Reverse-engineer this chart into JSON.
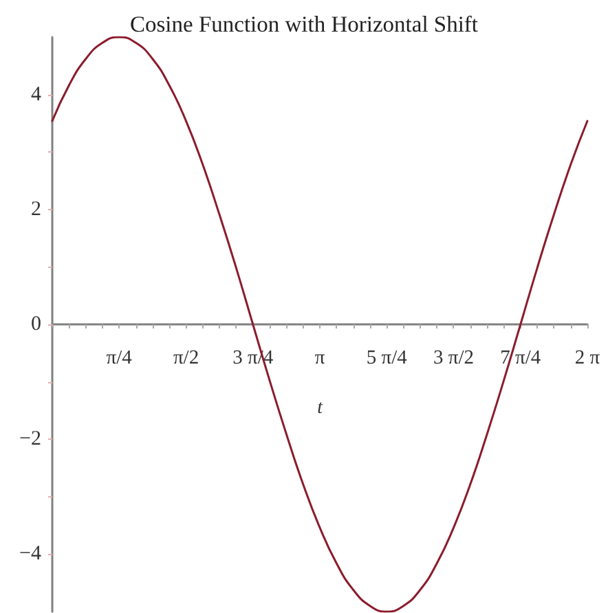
{
  "chart_data": {
    "type": "line",
    "title": "Cosine Function with Horizontal Shift",
    "xlabel": "t",
    "x": [
      0,
      0.196,
      0.393,
      0.589,
      0.785,
      0.982,
      1.178,
      1.374,
      1.571,
      1.767,
      1.963,
      2.16,
      2.356,
      2.553,
      2.749,
      2.945,
      3.142,
      3.338,
      3.534,
      3.731,
      3.927,
      4.123,
      4.32,
      4.516,
      4.712,
      4.909,
      5.105,
      5.301,
      5.498,
      5.694,
      5.89,
      6.087,
      6.283
    ],
    "values": [
      3.54,
      4.16,
      4.62,
      4.9,
      5,
      4.9,
      4.62,
      4.16,
      3.54,
      2.78,
      1.91,
      0.98,
      0,
      -0.98,
      -1.91,
      -2.78,
      -3.54,
      -4.16,
      -4.62,
      -4.9,
      -5,
      -4.9,
      -4.62,
      -4.16,
      -3.54,
      -2.78,
      -1.91,
      -0.98,
      0,
      0.98,
      1.91,
      2.78,
      3.54
    ],
    "color": "#8b1c2c",
    "xlim": [
      0,
      6.283
    ],
    "xticks": [
      {
        "value": 0.785,
        "label": "π/4"
      },
      {
        "value": 1.571,
        "label": "π/2"
      },
      {
        "value": 2.356,
        "label": "3 π/4"
      },
      {
        "value": 3.142,
        "label": "π"
      },
      {
        "value": 3.927,
        "label": "5 π/4"
      },
      {
        "value": 4.712,
        "label": "3 π/2"
      },
      {
        "value": 5.498,
        "label": "7 π/4"
      },
      {
        "value": 6.283,
        "label": "2 π"
      }
    ],
    "ylim": [
      -5,
      5
    ],
    "yticks": [
      -4,
      -2,
      0,
      2,
      4
    ]
  }
}
